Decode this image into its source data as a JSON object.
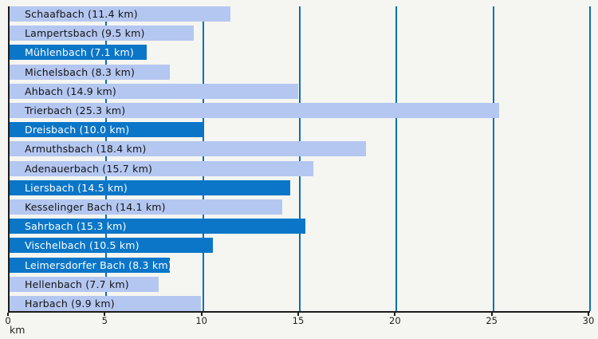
{
  "colors": {
    "background": "#f5f6f1",
    "bar_light": "#b4c7f1",
    "bar_dark": "#0b76c8",
    "gridline": "#0a6fb6",
    "axis": "#1c1c1c",
    "label_on_light": "#141414",
    "label_on_dark": "#ffffff"
  },
  "chart_data": {
    "type": "bar",
    "orientation": "horizontal",
    "title": "",
    "xlabel": "km",
    "ylabel": "",
    "xlim": [
      0,
      30
    ],
    "x_ticks": [
      0,
      5,
      10,
      15,
      20,
      25,
      30
    ],
    "grid": true,
    "legend": false,
    "bars": [
      {
        "name": "Schaafbach",
        "length_km": 11.4,
        "label": "Schaafbach (11.4 km)",
        "style": "light"
      },
      {
        "name": "Lampertsbach",
        "length_km": 9.5,
        "label": "Lampertsbach (9.5 km)",
        "style": "light"
      },
      {
        "name": "Mühlenbach",
        "length_km": 7.1,
        "label": "Mühlenbach (7.1 km)",
        "style": "dark"
      },
      {
        "name": "Michelsbach",
        "length_km": 8.3,
        "label": "Michelsbach (8.3 km)",
        "style": "light"
      },
      {
        "name": "Ahbach",
        "length_km": 14.9,
        "label": "Ahbach (14.9 km)",
        "style": "light"
      },
      {
        "name": "Trierbach",
        "length_km": 25.3,
        "label": "Trierbach (25.3 km)",
        "style": "light"
      },
      {
        "name": "Dreisbach",
        "length_km": 10.0,
        "label": "Dreisbach (10.0 km)",
        "style": "dark"
      },
      {
        "name": "Armuthsbach",
        "length_km": 18.4,
        "label": "Armuthsbach (18.4 km)",
        "style": "light"
      },
      {
        "name": "Adenauerbach",
        "length_km": 15.7,
        "label": "Adenauerbach (15.7 km)",
        "style": "light"
      },
      {
        "name": "Liersbach",
        "length_km": 14.5,
        "label": "Liersbach (14.5 km)",
        "style": "dark"
      },
      {
        "name": "Kesselinger Bach",
        "length_km": 14.1,
        "label": "Kesselinger Bach (14.1 km)",
        "style": "light"
      },
      {
        "name": "Sahrbach",
        "length_km": 15.3,
        "label": "Sahrbach (15.3 km)",
        "style": "dark"
      },
      {
        "name": "Vischelbach",
        "length_km": 10.5,
        "label": "Vischelbach (10.5 km)",
        "style": "dark"
      },
      {
        "name": "Leimersdorfer Bach",
        "length_km": 8.3,
        "label": "Leimersdorfer Bach (8.3 km)",
        "style": "dark"
      },
      {
        "name": "Hellenbach",
        "length_km": 7.7,
        "label": "Hellenbach (7.7 km)",
        "style": "light"
      },
      {
        "name": "Harbach",
        "length_km": 9.9,
        "label": "Harbach (9.9 km)",
        "style": "light"
      }
    ]
  }
}
